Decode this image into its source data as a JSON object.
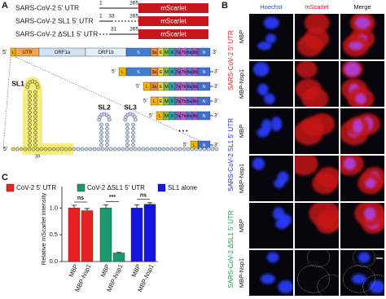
{
  "panel_a": {
    "label": "A",
    "constructs": [
      {
        "name": "SARS-CoV-2 5' UTR",
        "positions": [
          1,
          265
        ],
        "reporter": "mScarlet"
      },
      {
        "name": "SARS-CoV-2 SL1 5' UTR",
        "positions": [
          1,
          33,
          265
        ],
        "reporter": "mScarlet"
      },
      {
        "name": "SARS-CoV-2 ΔSL1 5' UTR",
        "positions": [
          31,
          265
        ],
        "reporter": "mScarlet"
      }
    ],
    "genome": {
      "five_prime": "5'",
      "three_prime": "3'",
      "leader": "L",
      "utr": "UTR",
      "orfs": [
        "ORF1a",
        "ORF1b"
      ],
      "genes": [
        "S",
        "3a",
        "E",
        "M",
        "6",
        "7a",
        "7b",
        "8a",
        "8b",
        "N"
      ]
    },
    "ellipsis": "• • •",
    "structure": {
      "five_prime": "5'",
      "stem_loops": [
        "SL1",
        "SL2",
        "SL3"
      ],
      "position": 33
    }
  },
  "panel_b": {
    "label": "B",
    "columns": [
      "Hoechst",
      "mScarlet",
      "Merge"
    ],
    "column_colors": [
      "#2b3fd6",
      "#d21d1d",
      "#111111"
    ],
    "groups": [
      "SARS-CoV-2 5' UTR",
      "SARS-CoV-2 SL1 5' UTR",
      "SARS-CoV-2 ΔSL1 5' UTR"
    ],
    "group_colors": [
      "#e02020",
      "#2433c8",
      "#1a9b4c"
    ],
    "rows": [
      "MBP",
      "MBP-Nsp1"
    ]
  },
  "chart_data": {
    "type": "bar",
    "label": "C",
    "ylabel": "Relative mScarlet intensity",
    "categories": [
      "MBP",
      "MBP-Nsp1"
    ],
    "series": [
      {
        "name": "CoV-2 5' UTR",
        "color": "#e8221e",
        "values": [
          1.0,
          0.95
        ],
        "errors": [
          0.05,
          0.04
        ]
      },
      {
        "name": "CoV-2 ΔSL1 5' UTR",
        "color": "#1a9b6c",
        "values": [
          1.0,
          0.16
        ],
        "errors": [
          0.06,
          0.01
        ]
      },
      {
        "name": "SL1 alone",
        "color": "#1515e0",
        "values": [
          1.0,
          1.07
        ],
        "errors": [
          0.06,
          0.03
        ]
      }
    ],
    "significance": [
      "ns",
      "***",
      "ns"
    ],
    "ylim": [
      0,
      1.4
    ],
    "yticks": [
      {
        "value": 0,
        "label": "0.0"
      },
      {
        "value": 0.5,
        "label": "0.5"
      },
      {
        "value": 1,
        "label": "1.0"
      }
    ]
  }
}
